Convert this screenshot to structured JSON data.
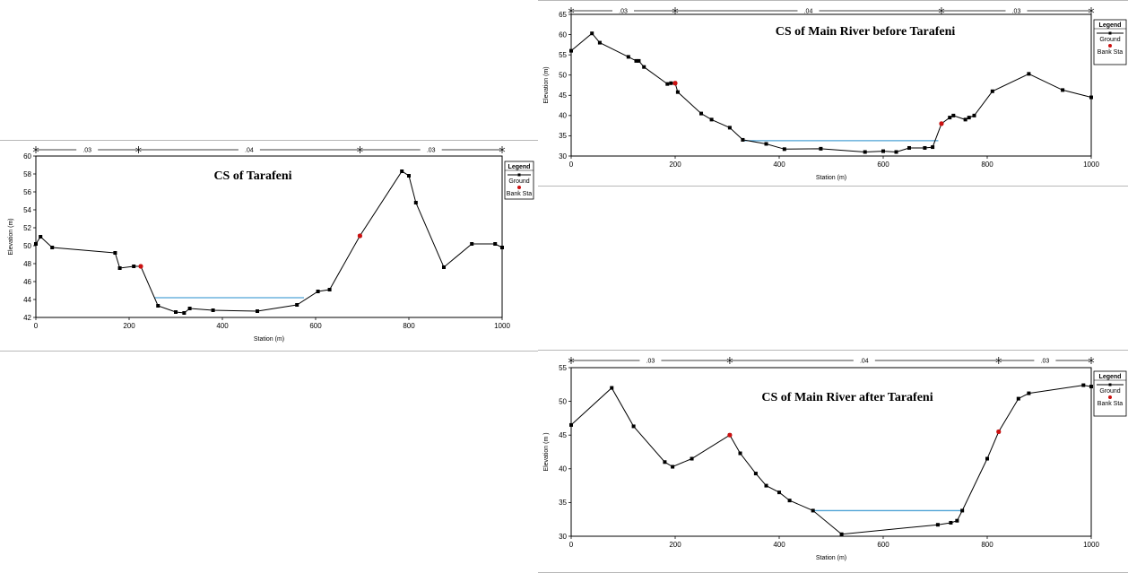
{
  "legend": {
    "title": "Legend",
    "ground_label": "Ground",
    "bank_label": "Bank Sta"
  },
  "colors": {
    "ground": "#000000",
    "bank": "#cc1111",
    "water": "#4fa3d6"
  },
  "chart_data": [
    {
      "type": "line",
      "title": "CS of Tarafeni",
      "xlabel": "Station (m)",
      "ylabel": "Elevation (m)",
      "xlim": [
        0,
        1000
      ],
      "ylim": [
        42,
        60
      ],
      "xticks": [
        0,
        200,
        400,
        600,
        800,
        1000
      ],
      "yticks": [
        42,
        44,
        46,
        48,
        50,
        52,
        54,
        56,
        58,
        60
      ],
      "mannings_n": [
        {
          "from": 0,
          "to": 220,
          "label": ".03"
        },
        {
          "from": 220,
          "to": 695,
          "label": ".04"
        },
        {
          "from": 695,
          "to": 1000,
          "label": ".03"
        }
      ],
      "series": [
        {
          "name": "Ground",
          "x": [
            0,
            10,
            35,
            170,
            180,
            210,
            225,
            262,
            300,
            318,
            330,
            380,
            475,
            560,
            605,
            630,
            695,
            785,
            800,
            815,
            875,
            935,
            985,
            1000
          ],
          "y": [
            50.2,
            51.0,
            49.8,
            49.2,
            47.5,
            47.7,
            47.7,
            43.3,
            42.6,
            42.5,
            43.0,
            42.8,
            42.7,
            43.4,
            44.9,
            45.1,
            51.1,
            58.3,
            57.8,
            54.8,
            47.6,
            50.2,
            50.2,
            49.8
          ]
        },
        {
          "name": "Bank Sta",
          "x": [
            225,
            695
          ],
          "y": [
            47.7,
            51.1
          ]
        }
      ],
      "water_surface": {
        "x": [
          255,
          575
        ],
        "y": 44.2
      },
      "legend": [
        "Ground",
        "Bank Sta"
      ],
      "grid": false
    },
    {
      "type": "line",
      "title": "CS of Main River before Tarafeni",
      "xlabel": "Station (m)",
      "ylabel": "Elevation (m)",
      "xlim": [
        0,
        1000
      ],
      "ylim": [
        30,
        65
      ],
      "xticks": [
        0,
        200,
        400,
        600,
        800,
        1000
      ],
      "yticks": [
        30,
        35,
        40,
        45,
        50,
        55,
        60,
        65
      ],
      "mannings_n": [
        {
          "from": 0,
          "to": 200,
          "label": ".03"
        },
        {
          "from": 200,
          "to": 712,
          "label": ".04"
        },
        {
          "from": 712,
          "to": 1000,
          "label": ".03"
        }
      ],
      "series": [
        {
          "name": "Ground",
          "x": [
            0,
            40,
            55,
            110,
            125,
            130,
            140,
            185,
            192,
            200,
            205,
            250,
            270,
            305,
            330,
            375,
            410,
            480,
            565,
            600,
            625,
            650,
            680,
            695,
            712,
            728,
            735,
            758,
            765,
            775,
            810,
            880,
            945,
            1000
          ],
          "y": [
            56.0,
            60.3,
            58.0,
            54.5,
            53.5,
            53.5,
            52.0,
            47.8,
            48.0,
            48.0,
            45.8,
            40.5,
            39.0,
            37.0,
            34.0,
            33.0,
            31.7,
            31.8,
            31.0,
            31.2,
            31.0,
            32.0,
            32.0,
            32.2,
            38.0,
            39.5,
            40.0,
            39.0,
            39.5,
            40.0,
            46.0,
            50.3,
            46.3,
            44.5
          ]
        },
        {
          "name": "Bank Sta",
          "x": [
            200,
            712
          ],
          "y": [
            48.0,
            38.0
          ]
        }
      ],
      "water_surface": {
        "x": [
          330,
          706
        ],
        "y": 33.8
      },
      "legend": [
        "Ground",
        "Bank Sta"
      ],
      "grid": false
    },
    {
      "type": "line",
      "title": "CS of Main River after Tarafeni",
      "xlabel": "Station (m)",
      "ylabel": "Elevation (m )",
      "xlim": [
        0,
        1000
      ],
      "ylim": [
        30,
        55
      ],
      "xticks": [
        0,
        200,
        400,
        600,
        800,
        1000
      ],
      "yticks": [
        30,
        35,
        40,
        45,
        50,
        55
      ],
      "mannings_n": [
        {
          "from": 0,
          "to": 305,
          "label": ".03"
        },
        {
          "from": 305,
          "to": 822,
          "label": ".04"
        },
        {
          "from": 822,
          "to": 1000,
          "label": ".03"
        }
      ],
      "series": [
        {
          "name": "Ground",
          "x": [
            0,
            78,
            120,
            180,
            195,
            232,
            305,
            325,
            355,
            375,
            400,
            420,
            465,
            520,
            705,
            730,
            742,
            752,
            800,
            822,
            860,
            880,
            985,
            1000
          ],
          "y": [
            46.5,
            52.0,
            46.3,
            41.0,
            40.3,
            41.5,
            45.0,
            42.3,
            39.3,
            37.5,
            36.5,
            35.3,
            33.8,
            30.3,
            31.7,
            32.0,
            32.3,
            33.8,
            41.5,
            45.5,
            50.4,
            51.2,
            52.4,
            52.2
          ]
        },
        {
          "name": "Bank Sta",
          "x": [
            305,
            822
          ],
          "y": [
            45.0,
            45.5
          ]
        }
      ],
      "water_surface": {
        "x": [
          462,
          752
        ],
        "y": 33.8
      },
      "legend": [
        "Ground",
        "Bank Sta"
      ],
      "grid": false
    }
  ]
}
